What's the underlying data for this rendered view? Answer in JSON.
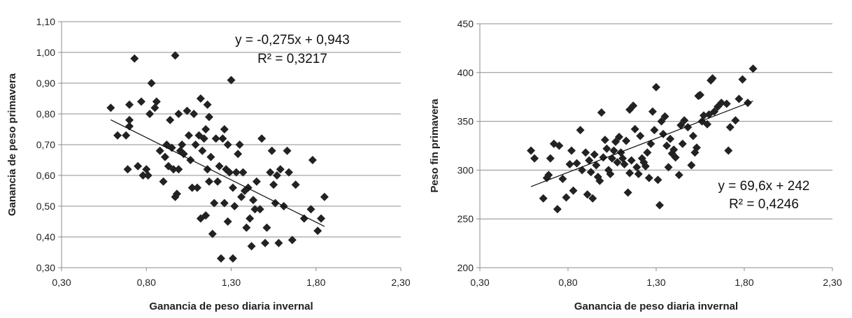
{
  "chart_data": [
    {
      "type": "scatter",
      "title": "",
      "xlabel": "Ganancia de peso diaria invernal",
      "ylabel": "Ganancia de peso primavera",
      "xlim": [
        0.3,
        2.3
      ],
      "ylim": [
        0.3,
        1.1
      ],
      "x_ticks": [
        "0,30",
        "0,80",
        "1,30",
        "1,80",
        "2,30"
      ],
      "y_ticks": [
        "0,30",
        "0,40",
        "0,50",
        "0,60",
        "0,70",
        "0,80",
        "0,90",
        "1,00",
        "1,10"
      ],
      "grid": "horizontal",
      "trendline": {
        "slope": -0.275,
        "intercept": 0.943,
        "x_range": [
          0.59,
          1.85
        ]
      },
      "equation": "y = -0,275x + 0,943",
      "r_squared": "R² = 0,3217",
      "points": [
        [
          0.59,
          0.82
        ],
        [
          0.63,
          0.73
        ],
        [
          0.68,
          0.73
        ],
        [
          0.69,
          0.62
        ],
        [
          0.7,
          0.83
        ],
        [
          0.7,
          0.78
        ],
        [
          0.7,
          0.76
        ],
        [
          0.73,
          0.98
        ],
        [
          0.75,
          0.63
        ],
        [
          0.77,
          0.84
        ],
        [
          0.78,
          0.6
        ],
        [
          0.8,
          0.62
        ],
        [
          0.81,
          0.6
        ],
        [
          0.82,
          0.8
        ],
        [
          0.83,
          0.9
        ],
        [
          0.85,
          0.82
        ],
        [
          0.86,
          0.84
        ],
        [
          0.88,
          0.68
        ],
        [
          0.9,
          0.58
        ],
        [
          0.91,
          0.66
        ],
        [
          0.92,
          0.7
        ],
        [
          0.93,
          0.63
        ],
        [
          0.94,
          0.78
        ],
        [
          0.95,
          0.69
        ],
        [
          0.96,
          0.62
        ],
        [
          0.97,
          0.53
        ],
        [
          0.97,
          0.99
        ],
        [
          0.98,
          0.54
        ],
        [
          0.99,
          0.62
        ],
        [
          0.99,
          0.8
        ],
        [
          1.0,
          0.68
        ],
        [
          1.01,
          0.7
        ],
        [
          1.02,
          0.67
        ],
        [
          1.04,
          0.81
        ],
        [
          1.05,
          0.73
        ],
        [
          1.06,
          0.65
        ],
        [
          1.07,
          0.56
        ],
        [
          1.08,
          0.8
        ],
        [
          1.09,
          0.7
        ],
        [
          1.1,
          0.56
        ],
        [
          1.11,
          0.73
        ],
        [
          1.12,
          0.85
        ],
        [
          1.12,
          0.46
        ],
        [
          1.13,
          0.68
        ],
        [
          1.14,
          0.72
        ],
        [
          1.15,
          0.75
        ],
        [
          1.15,
          0.47
        ],
        [
          1.16,
          0.83
        ],
        [
          1.16,
          0.62
        ],
        [
          1.17,
          0.79
        ],
        [
          1.17,
          0.58
        ],
        [
          1.18,
          0.66
        ],
        [
          1.19,
          0.41
        ],
        [
          1.2,
          0.51
        ],
        [
          1.21,
          0.72
        ],
        [
          1.22,
          0.58
        ],
        [
          1.23,
          0.63
        ],
        [
          1.24,
          0.33
        ],
        [
          1.25,
          0.72
        ],
        [
          1.26,
          0.75
        ],
        [
          1.26,
          0.51
        ],
        [
          1.27,
          0.62
        ],
        [
          1.28,
          0.7
        ],
        [
          1.28,
          0.45
        ],
        [
          1.29,
          0.61
        ],
        [
          1.3,
          0.91
        ],
        [
          1.31,
          0.56
        ],
        [
          1.31,
          0.33
        ],
        [
          1.32,
          0.5
        ],
        [
          1.33,
          0.61
        ],
        [
          1.34,
          0.67
        ],
        [
          1.35,
          0.7
        ],
        [
          1.36,
          0.53
        ],
        [
          1.37,
          0.61
        ],
        [
          1.38,
          0.55
        ],
        [
          1.39,
          0.43
        ],
        [
          1.4,
          0.56
        ],
        [
          1.41,
          0.46
        ],
        [
          1.42,
          0.37
        ],
        [
          1.43,
          0.52
        ],
        [
          1.44,
          0.49
        ],
        [
          1.45,
          0.58
        ],
        [
          1.47,
          0.49
        ],
        [
          1.48,
          0.72
        ],
        [
          1.5,
          0.38
        ],
        [
          1.51,
          0.43
        ],
        [
          1.53,
          0.61
        ],
        [
          1.54,
          0.68
        ],
        [
          1.55,
          0.57
        ],
        [
          1.56,
          0.51
        ],
        [
          1.57,
          0.6
        ],
        [
          1.58,
          0.38
        ],
        [
          1.59,
          0.62
        ],
        [
          1.61,
          0.5
        ],
        [
          1.63,
          0.68
        ],
        [
          1.64,
          0.61
        ],
        [
          1.66,
          0.39
        ],
        [
          1.68,
          0.57
        ],
        [
          1.73,
          0.46
        ],
        [
          1.77,
          0.49
        ],
        [
          1.78,
          0.65
        ],
        [
          1.81,
          0.42
        ],
        [
          1.83,
          0.46
        ],
        [
          1.85,
          0.53
        ]
      ]
    },
    {
      "type": "scatter",
      "title": "",
      "xlabel": "Ganancia de peso diaria invernal",
      "ylabel": "Peso fin primavera",
      "xlim": [
        0.3,
        2.3
      ],
      "ylim": [
        200,
        450
      ],
      "x_ticks": [
        "0,30",
        "0,80",
        "1,30",
        "1,80",
        "2,30"
      ],
      "y_ticks": [
        "200",
        "250",
        "300",
        "350",
        "400",
        "450"
      ],
      "grid": "horizontal",
      "trendline": {
        "slope": 69.6,
        "intercept": 242,
        "x_range": [
          0.59,
          1.85
        ]
      },
      "equation": "y = 69,6x + 242",
      "r_squared": "R² = 0,4246",
      "points": [
        [
          0.59,
          320
        ],
        [
          0.61,
          312
        ],
        [
          0.66,
          271
        ],
        [
          0.68,
          292
        ],
        [
          0.69,
          295
        ],
        [
          0.7,
          312
        ],
        [
          0.72,
          327
        ],
        [
          0.74,
          260
        ],
        [
          0.75,
          325
        ],
        [
          0.77,
          291
        ],
        [
          0.79,
          272
        ],
        [
          0.81,
          306
        ],
        [
          0.82,
          320
        ],
        [
          0.83,
          279
        ],
        [
          0.85,
          307
        ],
        [
          0.87,
          341
        ],
        [
          0.88,
          300
        ],
        [
          0.9,
          318
        ],
        [
          0.91,
          275
        ],
        [
          0.92,
          310
        ],
        [
          0.93,
          298
        ],
        [
          0.94,
          271
        ],
        [
          0.95,
          316
        ],
        [
          0.96,
          305
        ],
        [
          0.97,
          293
        ],
        [
          0.98,
          289
        ],
        [
          0.99,
          359
        ],
        [
          1.0,
          313
        ],
        [
          1.01,
          331
        ],
        [
          1.02,
          322
        ],
        [
          1.03,
          300
        ],
        [
          1.04,
          296
        ],
        [
          1.05,
          312
        ],
        [
          1.06,
          320
        ],
        [
          1.07,
          329
        ],
        [
          1.08,
          308
        ],
        [
          1.09,
          334
        ],
        [
          1.1,
          318
        ],
        [
          1.11,
          312
        ],
        [
          1.12,
          306
        ],
        [
          1.13,
          330
        ],
        [
          1.14,
          277
        ],
        [
          1.15,
          362
        ],
        [
          1.15,
          297
        ],
        [
          1.16,
          310
        ],
        [
          1.17,
          366
        ],
        [
          1.18,
          342
        ],
        [
          1.19,
          303
        ],
        [
          1.2,
          296
        ],
        [
          1.21,
          335
        ],
        [
          1.22,
          312
        ],
        [
          1.23,
          308
        ],
        [
          1.24,
          304
        ],
        [
          1.25,
          318
        ],
        [
          1.26,
          292
        ],
        [
          1.27,
          327
        ],
        [
          1.28,
          360
        ],
        [
          1.29,
          341
        ],
        [
          1.3,
          385
        ],
        [
          1.31,
          290
        ],
        [
          1.32,
          264
        ],
        [
          1.33,
          350
        ],
        [
          1.34,
          337
        ],
        [
          1.35,
          355
        ],
        [
          1.36,
          325
        ],
        [
          1.37,
          303
        ],
        [
          1.38,
          332
        ],
        [
          1.39,
          317
        ],
        [
          1.4,
          321
        ],
        [
          1.41,
          313
        ],
        [
          1.43,
          295
        ],
        [
          1.44,
          346
        ],
        [
          1.45,
          327
        ],
        [
          1.46,
          351
        ],
        [
          1.48,
          344
        ],
        [
          1.5,
          305
        ],
        [
          1.51,
          335
        ],
        [
          1.52,
          318
        ],
        [
          1.53,
          323
        ],
        [
          1.54,
          376
        ],
        [
          1.55,
          377
        ],
        [
          1.56,
          350
        ],
        [
          1.57,
          356
        ],
        [
          1.59,
          347
        ],
        [
          1.6,
          357
        ],
        [
          1.61,
          392
        ],
        [
          1.62,
          394
        ],
        [
          1.63,
          360
        ],
        [
          1.65,
          365
        ],
        [
          1.67,
          369
        ],
        [
          1.7,
          368
        ],
        [
          1.71,
          320
        ],
        [
          1.72,
          344
        ],
        [
          1.75,
          351
        ],
        [
          1.77,
          373
        ],
        [
          1.79,
          393
        ],
        [
          1.82,
          369
        ],
        [
          1.85,
          404
        ]
      ]
    }
  ]
}
